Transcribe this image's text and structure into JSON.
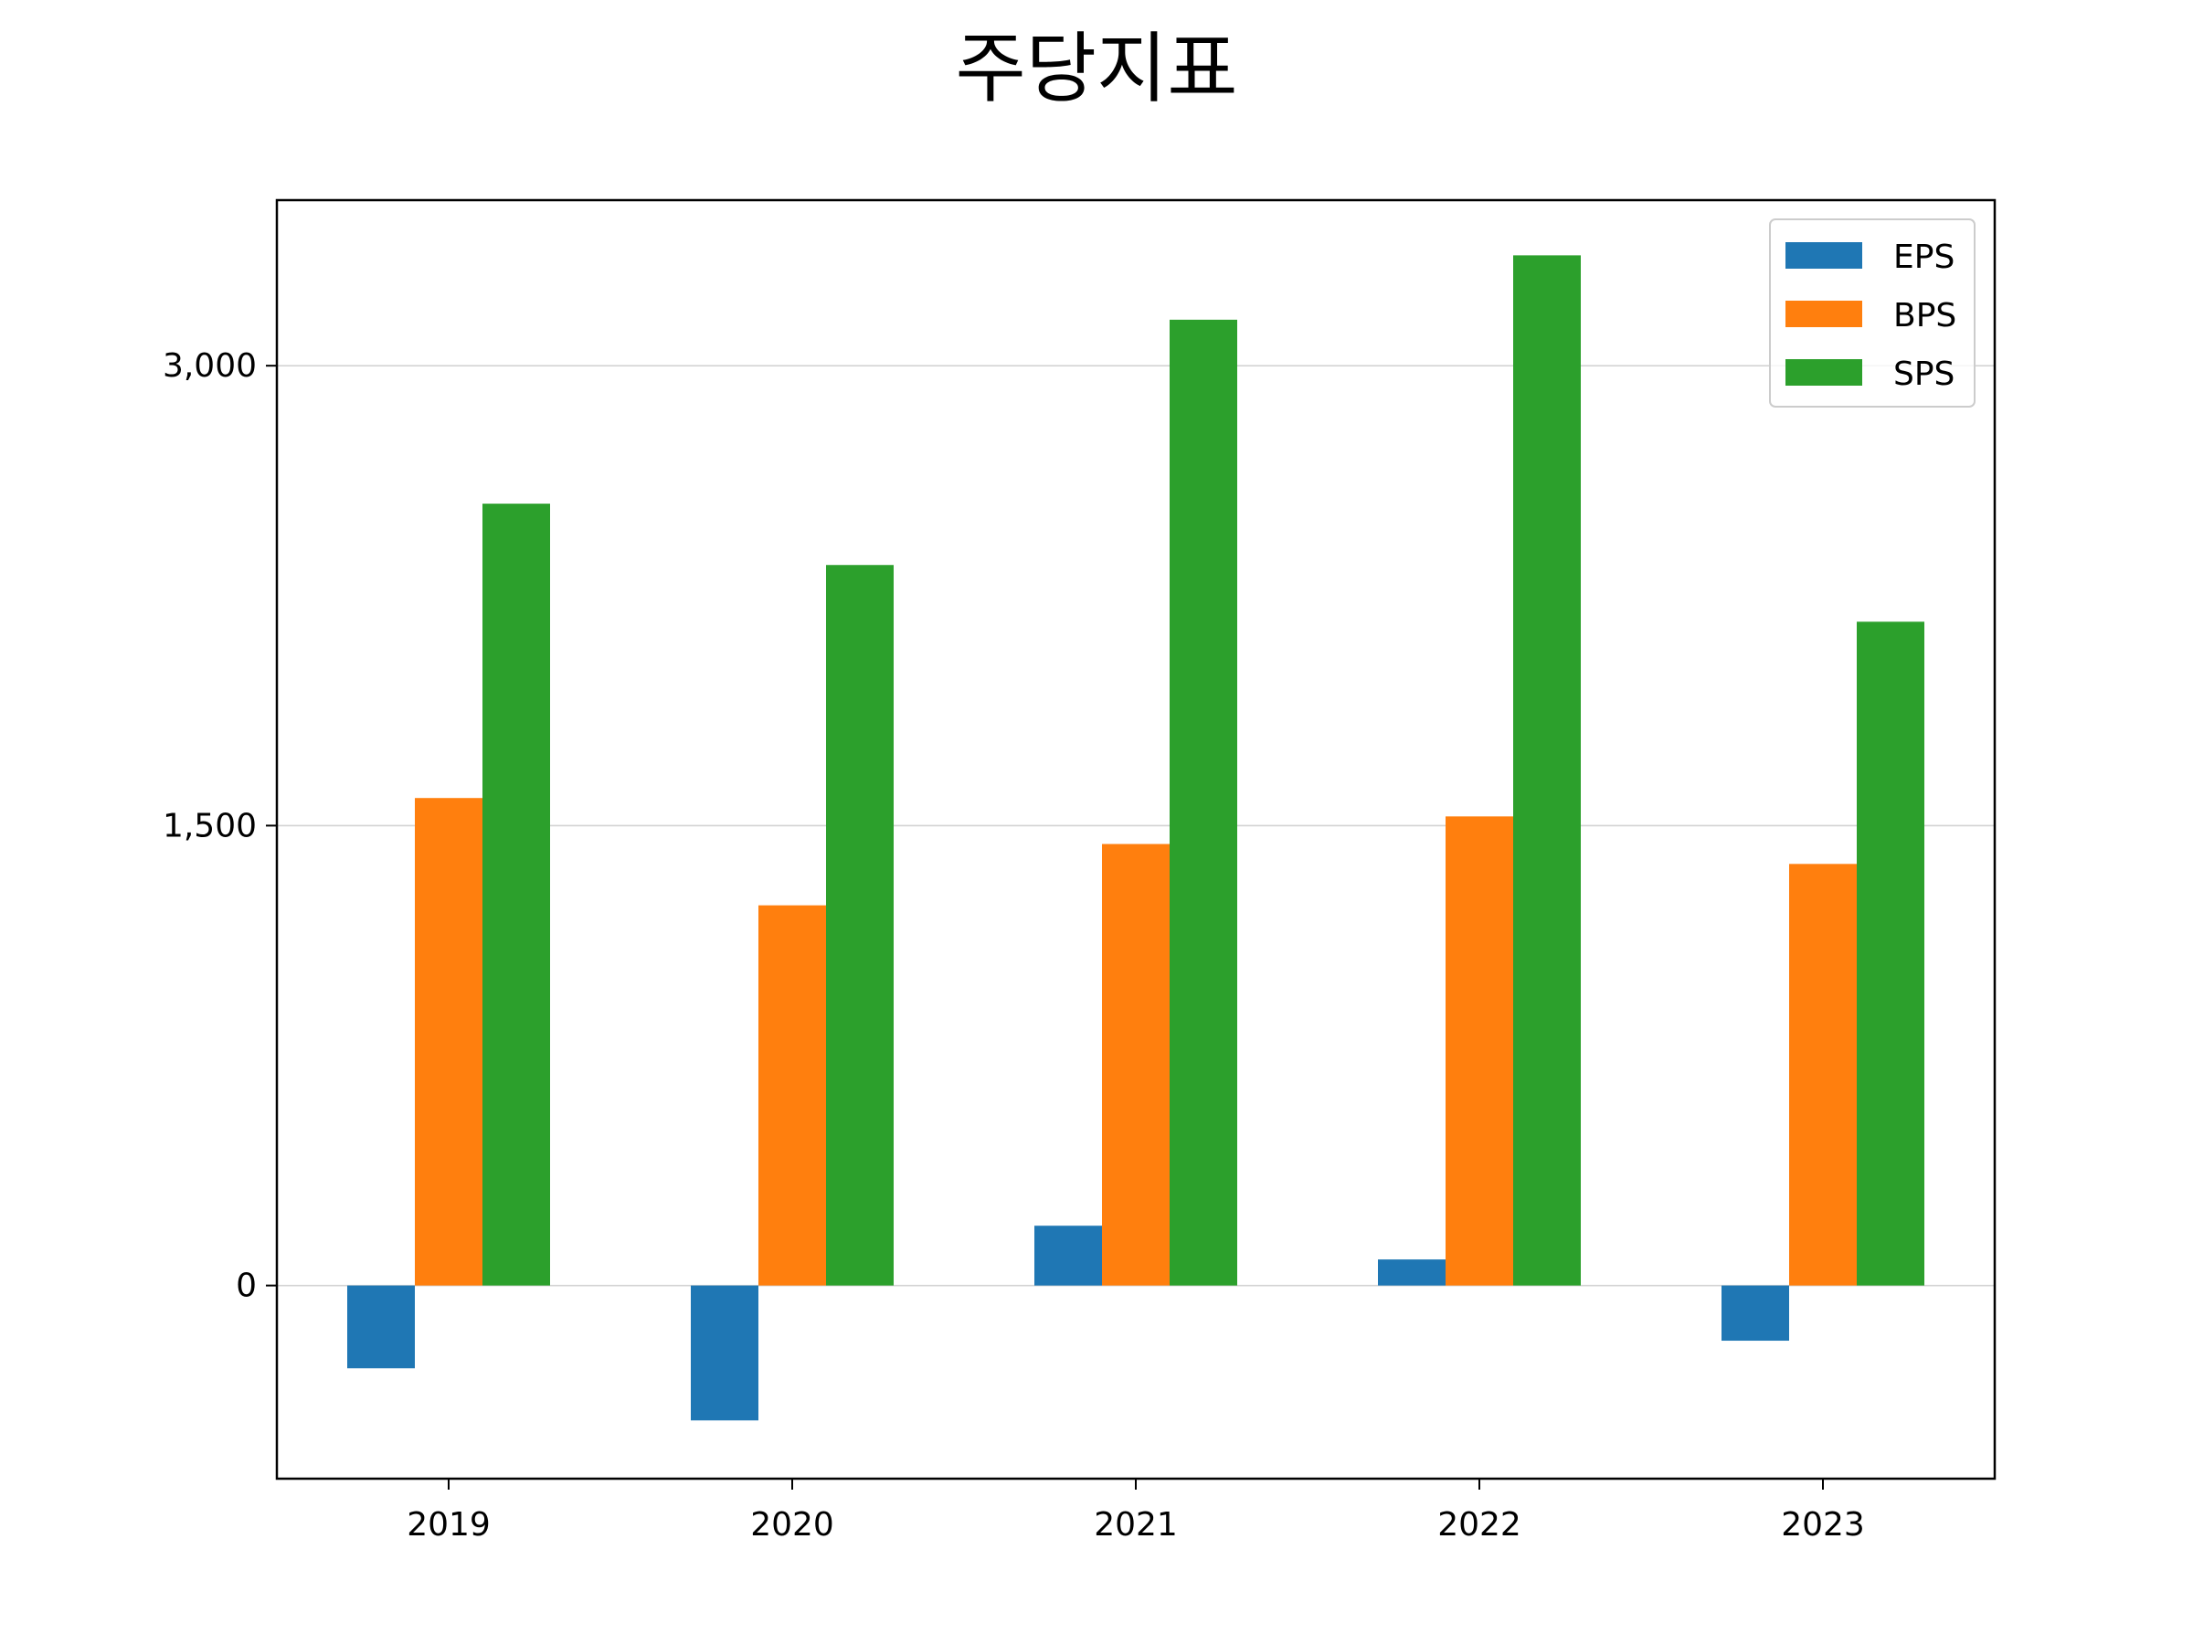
{
  "chart_data": {
    "type": "bar",
    "title": "주당지표",
    "xlabel": "",
    "ylabel": "",
    "categories": [
      "2019",
      "2020",
      "2021",
      "2022",
      "2023"
    ],
    "series": [
      {
        "name": "EPS",
        "color": "#1f77b4",
        "values": [
          -270,
          -440,
          195,
          85,
          -180
        ]
      },
      {
        "name": "BPS",
        "color": "#ff7f0e",
        "values": [
          1590,
          1240,
          1440,
          1530,
          1375
        ]
      },
      {
        "name": "SPS",
        "color": "#2ca02c",
        "values": [
          2550,
          2350,
          3150,
          3360,
          2165
        ]
      }
    ],
    "yticks": [
      0,
      1500,
      3000
    ],
    "ytick_labels": [
      "0",
      "1,500",
      "3,000"
    ],
    "ylim": [
      -630,
      3540
    ],
    "grid": "horizontal",
    "legend_position": "top-right"
  }
}
